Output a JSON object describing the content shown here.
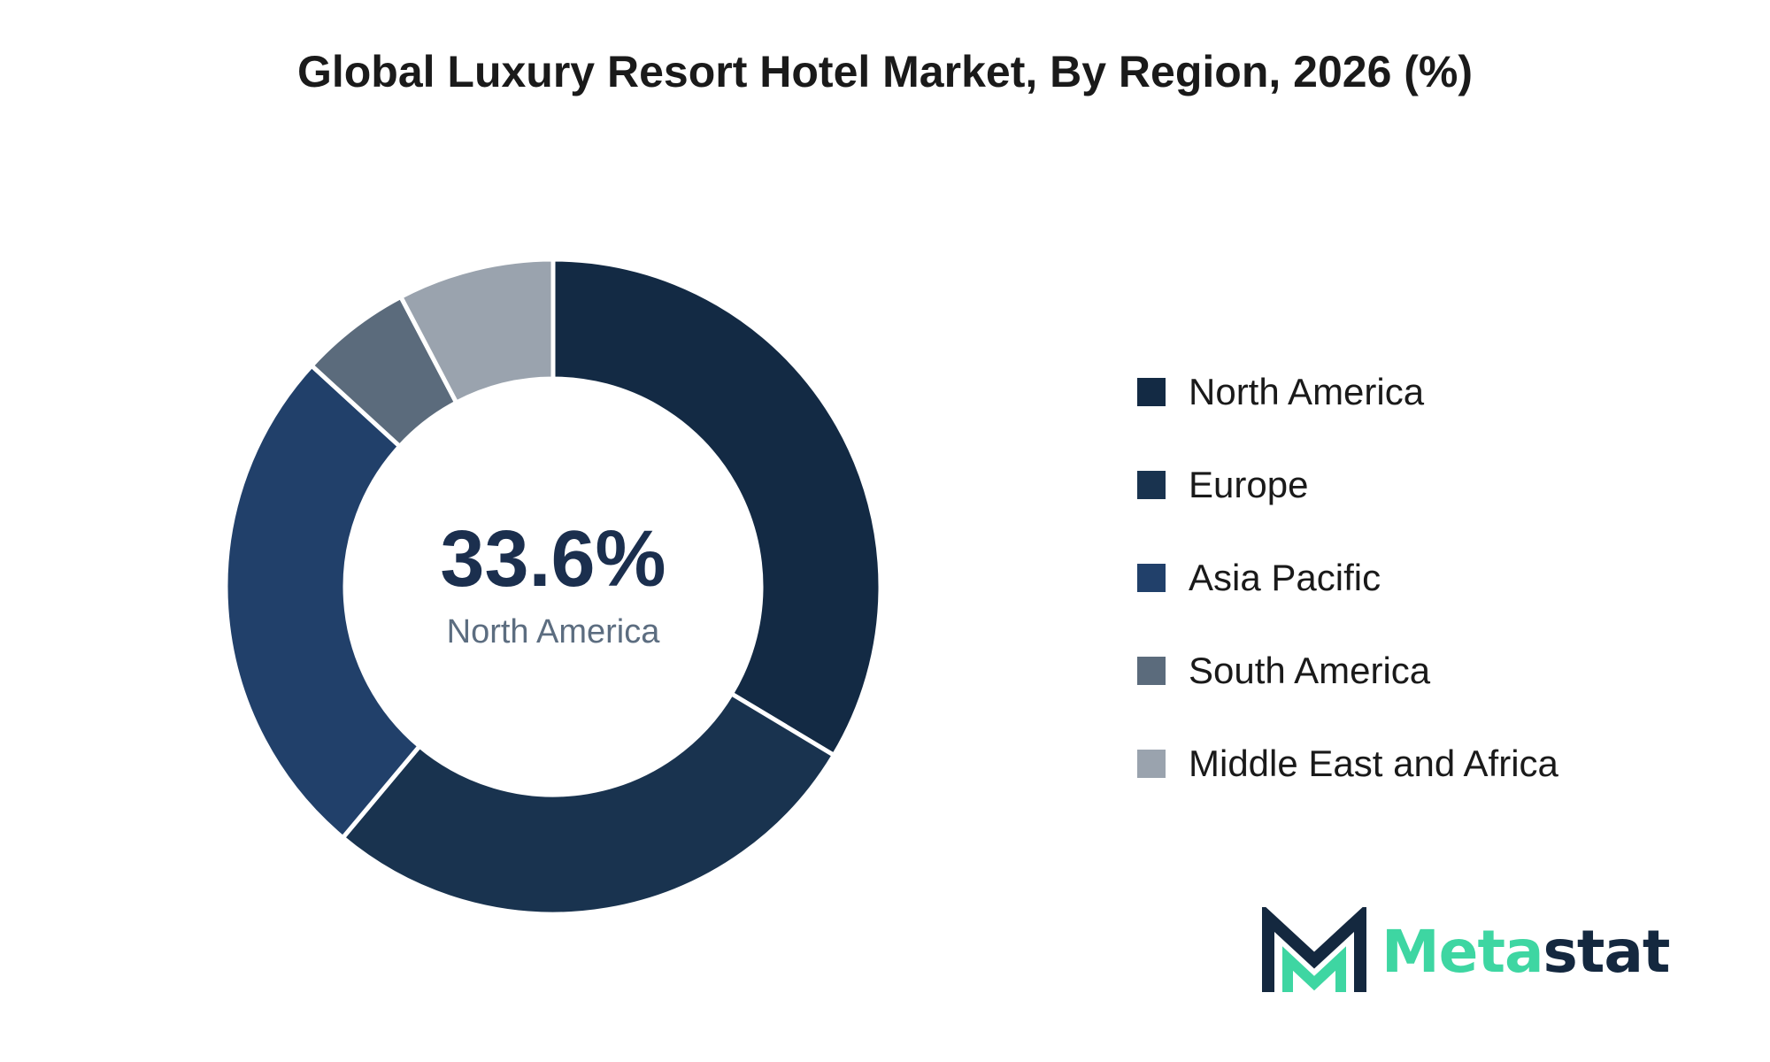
{
  "chart_data": {
    "type": "pie",
    "title": "Global Luxury Resort Hotel Market, By Region, 2026 (%)",
    "categories": [
      "North America",
      "Europe",
      "Asia Pacific",
      "South America",
      "Middle East and Africa"
    ],
    "values": [
      33.6,
      27.5,
      25.7,
      5.5,
      7.7
    ],
    "unit": "%",
    "donut": true,
    "legend_position": "right",
    "colors": [
      "#132a44",
      "#19334f",
      "#21406a",
      "#5b6b7c",
      "#9aa3ae"
    ],
    "center_value": "33.6%",
    "center_label": "North America"
  },
  "logo": {
    "meta": "Meta",
    "stat": "stat",
    "mark_color_dark": "#14283f",
    "mark_color_accent": "#3ed6a2"
  }
}
